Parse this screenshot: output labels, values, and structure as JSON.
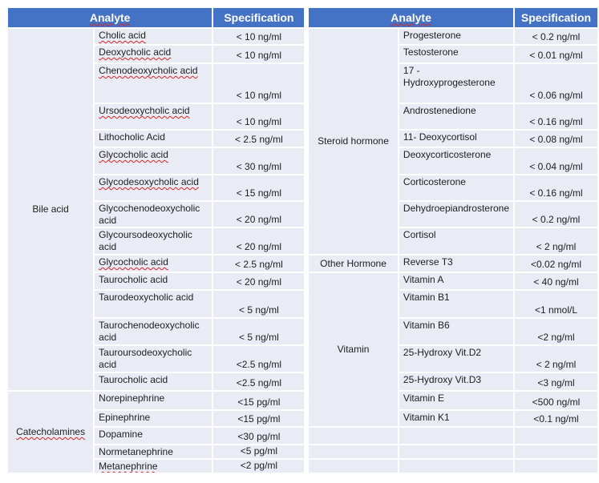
{
  "header": {
    "analyte": "Analyte",
    "specification": "Specification"
  },
  "colors": {
    "header_bg": "#4472c4",
    "cell_bg": "#e9ebf5"
  },
  "left": [
    {
      "group": "Bile acid",
      "items": [
        {
          "analyte": "Cholic acid",
          "spec": "< 10  ng/ml"
        },
        {
          "analyte": "Deoxycholic acid",
          "spec": "< 10  ng/ml"
        },
        {
          "analyte": "Chenodeoxycholic acid",
          "spec": "< 10  ng/ml"
        },
        {
          "analyte": "Ursodeoxycholic acid",
          "spec": "< 10  ng/ml"
        },
        {
          "analyte": "Lithocholic Acid",
          "spec": "< 2.5 ng/ml"
        },
        {
          "analyte": "Glycocholic acid",
          "spec": "< 30  ng/ml"
        },
        {
          "analyte": "Glycodesoxycholic acid",
          "spec": "< 15  ng/ml"
        },
        {
          "analyte": "Glycochenodeoxycholic acid",
          "spec": "< 20  ng/ml"
        },
        {
          "analyte": "Glycoursodeoxycholic acid",
          "spec": "< 20  ng/ml"
        },
        {
          "analyte": "Glycocholic acid",
          "spec": "< 2.5 ng/ml"
        },
        {
          "analyte": "Taurocholic acid",
          "spec": "< 20  ng/ml"
        },
        {
          "analyte": "Taurodeoxycholic acid",
          "spec": "< 5  ng/ml"
        },
        {
          "analyte": "Taurochenodeoxycholic acid",
          "spec": "< 5  ng/ml"
        },
        {
          "analyte": "Tauroursodeoxycholic acid",
          "spec": "<2.5 ng/ml"
        },
        {
          "analyte": "Taurocholic acid",
          "spec": "<2.5 ng/ml"
        }
      ]
    },
    {
      "group": "Catecholamines",
      "items": [
        {
          "analyte": "Norepinephrine",
          "spec": "<15 pg/ml"
        },
        {
          "analyte": "Epinephrine",
          "spec": "<15 pg/ml"
        },
        {
          "analyte": "Dopamine",
          "spec": "<30 pg/ml"
        },
        {
          "analyte": "Normetanephrine",
          "spec": "<5 pg/ml"
        },
        {
          "analyte": "Metanephrine",
          "spec": "<2 pg/ml"
        }
      ]
    }
  ],
  "right": [
    {
      "group": "Steroid hormone",
      "items": [
        {
          "analyte": "Progesterone",
          "spec": "< 0.2 ng/ml"
        },
        {
          "analyte": "Testosterone",
          "spec": "< 0.01 ng/ml"
        },
        {
          "analyte": "17 - Hydroxyprogesterone",
          "spec": "< 0.06 ng/ml"
        },
        {
          "analyte": "Androstenedione",
          "spec": "< 0.16 ng/ml"
        },
        {
          "analyte": "11- Deoxycortisol",
          "spec": "< 0.08 ng/ml"
        },
        {
          "analyte": "Deoxycorticosterone",
          "spec": "< 0.04 ng/ml"
        },
        {
          "analyte": "Corticosterone",
          "spec": "< 0.16 ng/ml"
        },
        {
          "analyte": "Dehydroepiandrosterone",
          "spec": "< 0.2 ng/ml"
        },
        {
          "analyte": "Cortisol",
          "spec": "< 2 ng/ml"
        }
      ]
    },
    {
      "group": "Other Hormone",
      "items": [
        {
          "analyte": "Reverse T3",
          "spec": "<0.02 ng/ml"
        }
      ]
    },
    {
      "group": "Vitamin",
      "items": [
        {
          "analyte": "Vitamin A",
          "spec": "< 40 ng/ml"
        },
        {
          "analyte": "Vitamin B1",
          "spec": "<1 nmol/L"
        },
        {
          "analyte": "Vitamin B6",
          "spec": "<2 ng/ml"
        },
        {
          "analyte": " 25-Hydroxy  Vit.D2",
          "spec": "< 2 ng/ml"
        },
        {
          "analyte": " 25-Hydroxy  Vit.D3",
          "spec": "<3 ng/ml"
        },
        {
          "analyte": "Vitamin E",
          "spec": "<500 ng/ml"
        },
        {
          "analyte": "Vitamin K1",
          "spec": "<0.1 ng/ml"
        }
      ]
    }
  ]
}
